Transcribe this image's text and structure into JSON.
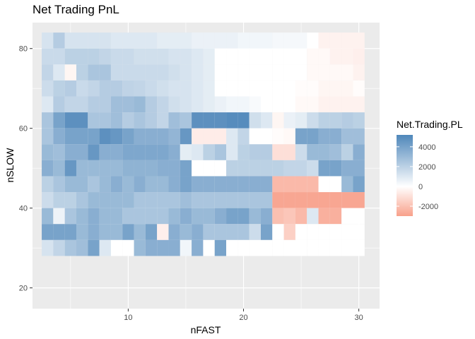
{
  "chart_data": {
    "type": "heatmap",
    "title": "Net Trading PnL",
    "xlabel": "nFAST",
    "ylabel": "nSLOW",
    "fill_label": "Net.Trading.PL",
    "x_ticks": [
      10,
      20,
      30
    ],
    "y_ticks": [
      20,
      40,
      60,
      80
    ],
    "xlim": [
      1.7,
      31.8
    ],
    "ylim": [
      14.8,
      86.5
    ],
    "fill_ticks": [
      4000,
      2000,
      0,
      -2000
    ],
    "fill_range": [
      -3000,
      5200
    ],
    "colors": {
      "high": "#4f87ba",
      "mid": "#ffffff",
      "low": "#f8a08a",
      "panel": "#ebebeb",
      "grid": "#ffffff"
    },
    "grid": true,
    "legend_position": "right",
    "x_values": [
      3,
      4,
      5,
      6,
      7,
      8,
      9,
      10,
      11,
      12,
      13,
      14,
      15,
      16,
      17,
      18,
      19,
      20,
      21,
      22,
      23,
      24,
      25,
      26,
      27,
      28,
      29,
      30
    ],
    "rows": [
      {
        "y": 82,
        "values": [
          1200,
          2200,
          1200,
          1200,
          1200,
          1200,
          1000,
          1000,
          1000,
          1000,
          800,
          800,
          800,
          600,
          600,
          600,
          600,
          400,
          400,
          400,
          300,
          300,
          300,
          0,
          -400,
          -400,
          -400,
          -400
        ]
      },
      {
        "y": 78,
        "values": [
          1600,
          1600,
          2000,
          2000,
          2000,
          1800,
          1600,
          1600,
          1400,
          1400,
          1400,
          1200,
          1200,
          1000,
          800,
          0,
          0,
          0,
          0,
          0,
          0,
          0,
          0,
          -200,
          -200,
          -400,
          -400,
          -500
        ]
      },
      {
        "y": 74,
        "values": [
          1800,
          1000,
          -300,
          2000,
          2500,
          2500,
          1600,
          1600,
          1600,
          1600,
          1600,
          1400,
          1200,
          1000,
          800,
          0,
          0,
          0,
          0,
          0,
          0,
          0,
          0,
          -200,
          -200,
          -200,
          -200,
          -400
        ]
      },
      {
        "y": 70,
        "values": [
          1500,
          2000,
          2200,
          1600,
          1800,
          2200,
          2200,
          1900,
          1800,
          1600,
          1400,
          1200,
          1200,
          1000,
          800,
          0,
          0,
          0,
          0,
          0,
          0,
          0,
          -100,
          -100,
          -300,
          -300,
          -300,
          -100
        ]
      },
      {
        "y": 66,
        "values": [
          1000,
          2200,
          1800,
          1800,
          2200,
          2200,
          2800,
          2800,
          3000,
          2200,
          1800,
          1400,
          1200,
          1000,
          800,
          600,
          400,
          400,
          200,
          0,
          0,
          0,
          -200,
          -200,
          -400,
          -400,
          -400,
          -400
        ]
      },
      {
        "y": 62,
        "values": [
          2500,
          4000,
          4800,
          4800,
          2500,
          2500,
          2800,
          2200,
          2500,
          2200,
          1800,
          2800,
          2500,
          4800,
          4800,
          4800,
          5000,
          5000,
          1400,
          1000,
          -300,
          600,
          800,
          1500,
          2000,
          2000,
          2200,
          2000
        ]
      },
      {
        "y": 58,
        "values": [
          2500,
          3500,
          4000,
          4000,
          4000,
          4800,
          4500,
          4000,
          3500,
          3500,
          3500,
          3200,
          4500,
          -600,
          -600,
          -600,
          1000,
          1800,
          0,
          0,
          -100,
          -200,
          4000,
          4000,
          3500,
          3500,
          2800,
          2800
        ]
      },
      {
        "y": 54,
        "values": [
          3000,
          2800,
          3500,
          3500,
          4500,
          3500,
          3500,
          3800,
          3800,
          3800,
          3800,
          3500,
          800,
          1000,
          2000,
          2500,
          1000,
          2000,
          2200,
          2200,
          -1000,
          -1000,
          1500,
          3000,
          3000,
          2800,
          2000,
          3500
        ]
      },
      {
        "y": 50,
        "values": [
          3500,
          3000,
          4500,
          3000,
          3000,
          3000,
          3000,
          3300,
          3300,
          3300,
          3500,
          3500,
          4000,
          0,
          0,
          0,
          2000,
          2000,
          2000,
          2000,
          2000,
          1800,
          1800,
          1500,
          4000,
          4000,
          3500,
          3500
        ]
      },
      {
        "y": 46,
        "values": [
          2000,
          2500,
          3000,
          3000,
          2500,
          3000,
          3500,
          3000,
          3500,
          3000,
          3000,
          3500,
          4000,
          3500,
          3500,
          3500,
          3500,
          3500,
          3500,
          3500,
          -2200,
          -2200,
          -2200,
          -2200,
          0,
          0,
          3000,
          4000
        ]
      },
      {
        "y": 42,
        "values": [
          1500,
          2000,
          2000,
          2500,
          3000,
          3000,
          3000,
          3000,
          2500,
          2500,
          2500,
          2500,
          2800,
          2500,
          2500,
          2500,
          2500,
          2500,
          2500,
          2500,
          -2800,
          -2800,
          -2800,
          -2800,
          -2800,
          -2800,
          -2800,
          -2800
        ]
      },
      {
        "y": 38,
        "values": [
          3000,
          500,
          2500,
          3000,
          3500,
          3000,
          3000,
          2500,
          2500,
          2500,
          2500,
          3000,
          3500,
          3000,
          3000,
          3500,
          4000,
          4000,
          3000,
          3500,
          -2000,
          -1800,
          -2200,
          1000,
          -2500,
          -2500,
          0,
          0
        ]
      },
      {
        "y": 34,
        "values": [
          4000,
          4000,
          4000,
          3000,
          3500,
          3000,
          3000,
          4000,
          3000,
          4000,
          -500,
          3500,
          3000,
          3500,
          2500,
          2500,
          2500,
          2500,
          1500,
          4000,
          0,
          -1500,
          0,
          0,
          0,
          0,
          0,
          0
        ]
      },
      {
        "y": 30,
        "values": [
          1200,
          1800,
          2500,
          2800,
          4000,
          1000,
          0,
          0,
          3000,
          3500,
          3500,
          3500,
          400,
          3500,
          0,
          4000,
          0,
          0,
          0,
          0,
          0,
          0,
          0,
          0,
          0,
          0,
          0,
          0
        ]
      }
    ]
  }
}
